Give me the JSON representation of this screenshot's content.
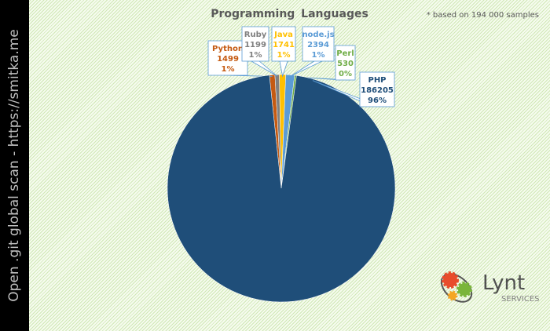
{
  "sidebar_text": "Open .git global scan - https://smitka.me",
  "note": "* based on 194 000 samples",
  "logo": {
    "name": "Lynt",
    "sub": "SERVICES"
  },
  "chart_data": {
    "type": "pie",
    "title": "Programming  Languages",
    "slices": [
      {
        "label": "Python",
        "value": 1499,
        "percent": "1%",
        "color": "#c55a11"
      },
      {
        "label": "Ruby",
        "value": 1199,
        "percent": "1%",
        "color": "#7f7f7f"
      },
      {
        "label": "Java",
        "value": 1741,
        "percent": "1%",
        "color": "#ffc000"
      },
      {
        "label": "node.js",
        "value": 2394,
        "percent": "1%",
        "color": "#5b9bd5"
      },
      {
        "label": "Perl",
        "value": 530,
        "percent": "0%",
        "color": "#70ad47"
      },
      {
        "label": "PHP",
        "value": 186205,
        "percent": "96%",
        "color": "#1f4e79"
      }
    ]
  }
}
